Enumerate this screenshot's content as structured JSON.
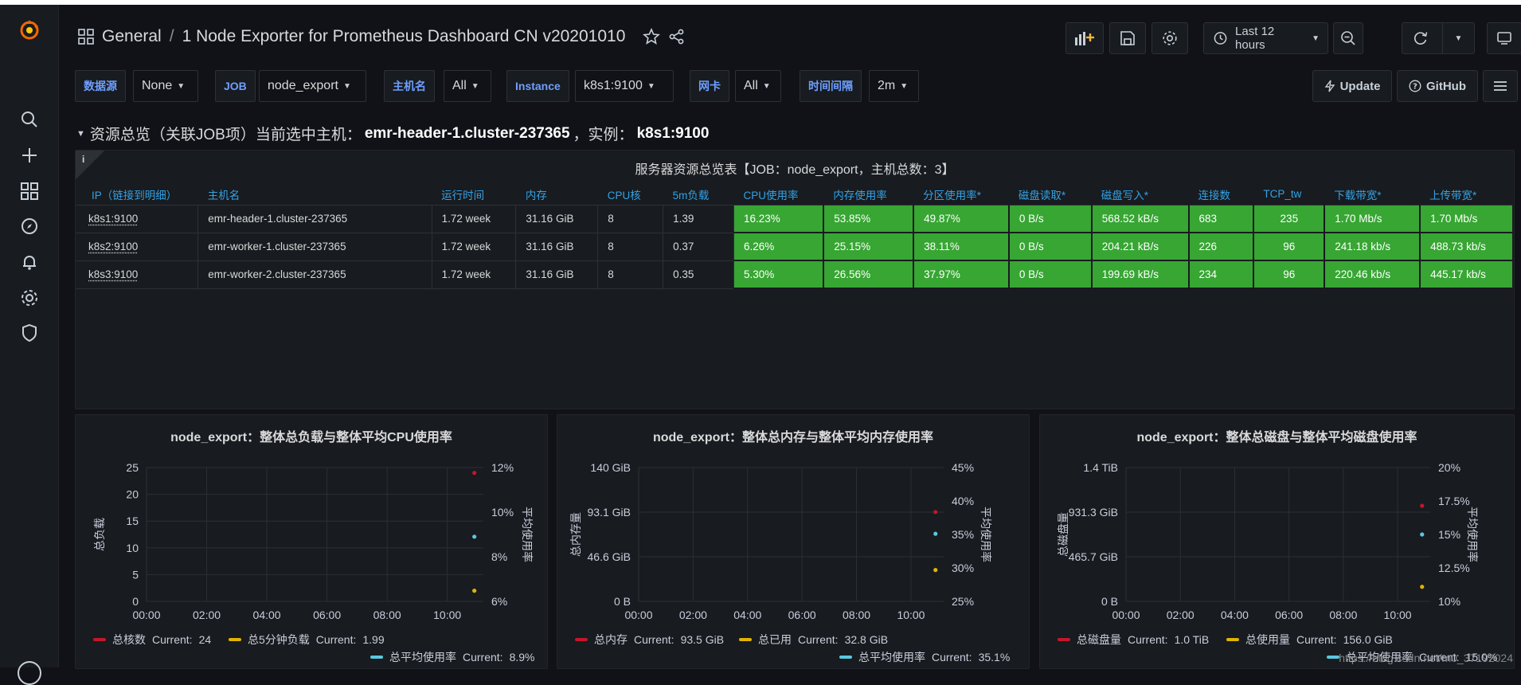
{
  "breadcrumb": {
    "folder": "General",
    "separator": "/",
    "title": "1 Node Exporter for Prometheus Dashboard CN v20201010"
  },
  "toolbar": {
    "time_range": "Last 12 hours"
  },
  "variables": [
    {
      "label": "数据源",
      "value": "None"
    },
    {
      "label": "JOB",
      "value": "node_export"
    },
    {
      "label": "主机名",
      "value": "All"
    },
    {
      "label": "Instance",
      "value": "k8s1:9100"
    },
    {
      "label": "网卡",
      "value": "All"
    },
    {
      "label": "时间间隔",
      "value": "2m"
    }
  ],
  "links": {
    "update": "Update",
    "github": "GitHub"
  },
  "row": {
    "prefix": "资源总览（关联JOB项）当前选中主机：",
    "host": "emr-header-1.cluster-237365",
    "sep": "，实例：",
    "instance": "k8s1:9100"
  },
  "table_panel": {
    "title": "服务器资源总览表【JOB：node_export，主机总数：3】",
    "info_icon": "i",
    "columns": [
      "IP（链接到明细）",
      "主机名",
      "运行时间",
      "内存",
      "CPU核",
      "5m负载",
      "CPU使用率",
      "内存使用率",
      "分区使用率*",
      "磁盘读取*",
      "磁盘写入*",
      "连接数",
      "TCP_tw",
      "下载带宽*",
      "上传带宽*"
    ],
    "rows": [
      [
        "k8s1:9100",
        "emr-header-1.cluster-237365",
        "1.72 week",
        "31.16 GiB",
        "8",
        "1.39",
        "16.23%",
        "53.85%",
        "49.87%",
        "0 B/s",
        "568.52 kB/s",
        "683",
        "235",
        "1.70 Mb/s",
        "1.70 Mb/s"
      ],
      [
        "k8s2:9100",
        "emr-worker-1.cluster-237365",
        "1.72 week",
        "31.16 GiB",
        "8",
        "0.37",
        "6.26%",
        "25.15%",
        "38.11%",
        "0 B/s",
        "204.21 kB/s",
        "226",
        "96",
        "241.18 kb/s",
        "488.73 kb/s"
      ],
      [
        "k8s3:9100",
        "emr-worker-2.cluster-237365",
        "1.72 week",
        "31.16 GiB",
        "8",
        "0.35",
        "5.30%",
        "26.56%",
        "37.97%",
        "0 B/s",
        "199.69 kB/s",
        "234",
        "96",
        "220.46 kb/s",
        "445.17 kb/s"
      ]
    ]
  },
  "colors": {
    "red": "#c4162a",
    "yellow": "#e0b400",
    "cyan": "#5ac8e0",
    "green": "#37a633",
    "blue": "#6e9fff"
  },
  "chart_data": [
    {
      "type": "scatter",
      "title": "node_export：整体总负载与整体平均CPU使用率",
      "ylabel": "总负载",
      "y2label": "平均使用率",
      "x": [
        "00:00",
        "02:00",
        "04:00",
        "06:00",
        "08:00",
        "10:00"
      ],
      "yticks": [
        "0",
        "5",
        "10",
        "15",
        "20",
        "25"
      ],
      "ylim": [
        0,
        25
      ],
      "y2ticks": [
        "6%",
        "8%",
        "10%",
        "12%"
      ],
      "y2lim": [
        6,
        12
      ],
      "series": [
        {
          "name": "总核数",
          "axis": "left",
          "color": "#c4162a",
          "x": 10.9,
          "y": 24,
          "current": "24"
        },
        {
          "name": "总5分钟负载",
          "axis": "left",
          "color": "#e0b400",
          "x": 10.9,
          "y": 1.99,
          "current": "1.99"
        },
        {
          "name": "总平均使用率",
          "axis": "right",
          "color": "#5ac8e0",
          "x": 10.9,
          "y": 8.9,
          "current": "8.9%"
        }
      ]
    },
    {
      "type": "scatter",
      "title": "node_export：整体总内存与整体平均内存使用率",
      "ylabel": "总内存量",
      "y2label": "平均使用率",
      "x": [
        "00:00",
        "02:00",
        "04:00",
        "06:00",
        "08:00",
        "10:00"
      ],
      "yticks": [
        "0 B",
        "46.6 GiB",
        "93.1 GiB",
        "140 GiB"
      ],
      "ylim": [
        0,
        140
      ],
      "y2ticks": [
        "25%",
        "30%",
        "35%",
        "40%",
        "45%"
      ],
      "y2lim": [
        25,
        45
      ],
      "series": [
        {
          "name": "总内存",
          "axis": "left",
          "color": "#c4162a",
          "x": 10.9,
          "y": 93.5,
          "current": "93.5 GiB"
        },
        {
          "name": "总已用",
          "axis": "left",
          "color": "#e0b400",
          "x": 10.9,
          "y": 32.8,
          "current": "32.8 GiB"
        },
        {
          "name": "总平均使用率",
          "axis": "right",
          "color": "#5ac8e0",
          "x": 10.9,
          "y": 35.1,
          "current": "35.1%"
        }
      ]
    },
    {
      "type": "scatter",
      "title": "node_export：整体总磁盘与整体平均磁盘使用率",
      "ylabel": "总磁盘量",
      "y2label": "平均使用率",
      "x": [
        "00:00",
        "02:00",
        "04:00",
        "06:00",
        "08:00",
        "10:00"
      ],
      "yticks": [
        "0 B",
        "465.7 GiB",
        "931.3 GiB",
        "1.4 TiB"
      ],
      "ylim": [
        0,
        1.4
      ],
      "y2ticks": [
        "10%",
        "12.5%",
        "15%",
        "17.5%",
        "20%"
      ],
      "y2lim": [
        10,
        20
      ],
      "series": [
        {
          "name": "总磁盘量",
          "axis": "left",
          "color": "#c4162a",
          "x": 10.9,
          "y": 1.0,
          "current": "1.0 TiB"
        },
        {
          "name": "总使用量",
          "axis": "left",
          "color": "#e0b400",
          "x": 10.9,
          "y": 0.1523,
          "current": "156.0 GiB"
        },
        {
          "name": "总平均使用率",
          "axis": "right",
          "color": "#5ac8e0",
          "x": 10.9,
          "y": 15.0,
          "current": "15.0%"
        }
      ]
    }
  ],
  "legend_current_label": "Current:",
  "watermark": "https://blog.csdn.net/m0_37192024"
}
